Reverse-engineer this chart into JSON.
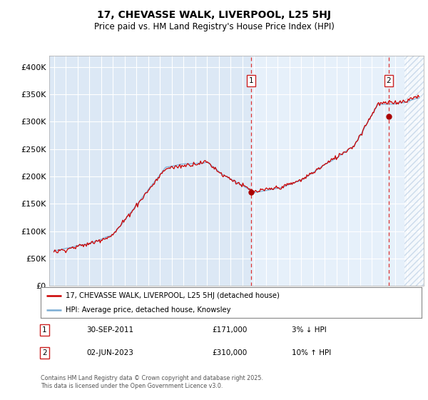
{
  "title": "17, CHEVASSE WALK, LIVERPOOL, L25 5HJ",
  "subtitle": "Price paid vs. HM Land Registry's House Price Index (HPI)",
  "ylim": [
    0,
    420000
  ],
  "yticks": [
    0,
    50000,
    100000,
    150000,
    200000,
    250000,
    300000,
    350000,
    400000
  ],
  "hpi_color": "#7badd4",
  "price_color": "#cc0000",
  "marker1_x": 2011.75,
  "marker1_y": 171000,
  "marker2_x": 2023.42,
  "marker2_y": 310000,
  "hatch_start": 2024.75,
  "xlim_left": 1994.6,
  "xlim_right": 2026.4,
  "bg_color": "#dce8f5",
  "bg_color_right": "#e8f2fc",
  "grid_color": "#ffffff",
  "legend_line1": "17, CHEVASSE WALK, LIVERPOOL, L25 5HJ (detached house)",
  "legend_line2": "HPI: Average price, detached house, Knowsley",
  "footer": "Contains HM Land Registry data © Crown copyright and database right 2025.\nThis data is licensed under the Open Government Licence v3.0."
}
